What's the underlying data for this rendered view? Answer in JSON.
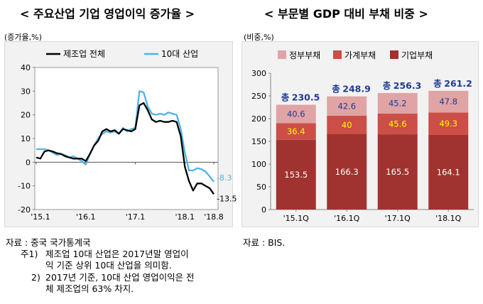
{
  "left": {
    "title": "< 주요산업 기업 영업이익 증가율 >",
    "unit": "(증가율,%)",
    "notes": {
      "source": "자료 : 중국 국가통계국",
      "note1_prefix": "주1)",
      "note1_line1": "제조업 10대 산업은 2017년말 영업이",
      "note1_line2": "익 기준 상위 10대 산업을 의미함.",
      "note2_prefix": "2)",
      "note2_line1": "2017년 기준, 10대 산업 영업이익은 전",
      "note2_line2": "체 제조업의 63% 차지."
    }
  },
  "right": {
    "title": "< 부문별 GDP 대비 부채 비중 >",
    "unit": "(비중,%)",
    "notes": {
      "source": "자료 : BIS."
    }
  },
  "chart_data": [
    {
      "type": "line",
      "title": "< 주요산업 기업 영업이익 증가율 >",
      "ylabel": "(증가율,%)",
      "ylim": [
        -20,
        40
      ],
      "yticks": [
        -20,
        -10,
        0,
        10,
        20,
        30,
        40
      ],
      "xticks": [
        "'15.1",
        "'16.1",
        "'17.1",
        "'18.1",
        "'18.8"
      ],
      "legend_position": "top-left",
      "colors": {
        "manufacturing": "#000000",
        "top10": "#4db3e6"
      },
      "series": [
        {
          "name": "제조업 전체",
          "end_label": "-13.5",
          "values": [
            [
              "'15.1",
              2.0
            ],
            [
              "'15.2",
              1.5
            ],
            [
              "'15.3",
              4.5
            ],
            [
              "'15.4",
              5.0
            ],
            [
              "'15.5",
              4.5
            ],
            [
              "'15.6",
              3.8
            ],
            [
              "'15.7",
              3.5
            ],
            [
              "'15.8",
              2.5
            ],
            [
              "'15.9",
              2.0
            ],
            [
              "'15.10",
              1.5
            ],
            [
              "'15.11",
              1.5
            ],
            [
              "'15.12",
              1.5
            ],
            [
              "'16.1",
              0.5
            ],
            [
              "'16.2",
              3.5
            ],
            [
              "'16.3",
              7.0
            ],
            [
              "'16.4",
              9.0
            ],
            [
              "'16.5",
              13.0
            ],
            [
              "'16.6",
              14.0
            ],
            [
              "'16.7",
              13.0
            ],
            [
              "'16.8",
              13.5
            ],
            [
              "'16.9",
              12.0
            ],
            [
              "'16.10",
              14.0
            ],
            [
              "'16.11",
              13.5
            ],
            [
              "'16.12",
              13.0
            ],
            [
              "'17.1",
              14.0
            ],
            [
              "'17.2",
              24.0
            ],
            [
              "'17.3",
              25.0
            ],
            [
              "'17.4",
              22.0
            ],
            [
              "'17.5",
              18.0
            ],
            [
              "'17.6",
              17.0
            ],
            [
              "'17.7",
              17.5
            ],
            [
              "'17.8",
              17.0
            ],
            [
              "'17.9",
              17.0
            ],
            [
              "'17.10",
              17.5
            ],
            [
              "'17.11",
              17.0
            ],
            [
              "'17.12",
              11.0
            ],
            [
              "'18.1",
              -2.0
            ],
            [
              "'18.2",
              -8.0
            ],
            [
              "'18.3",
              -12.0
            ],
            [
              "'18.4",
              -9.0
            ],
            [
              "'18.5",
              -9.0
            ],
            [
              "'18.6",
              -10.0
            ],
            [
              "'18.7",
              -11.0
            ],
            [
              "'18.8",
              -13.5
            ]
          ]
        },
        {
          "name": "10대 산업",
          "end_label": "-8.3",
          "values": [
            [
              "'15.1",
              5.5
            ],
            [
              "'15.2",
              5.5
            ],
            [
              "'15.3",
              5.5
            ],
            [
              "'15.4",
              5.0
            ],
            [
              "'15.5",
              4.0
            ],
            [
              "'15.6",
              3.0
            ],
            [
              "'15.7",
              3.5
            ],
            [
              "'15.8",
              3.0
            ],
            [
              "'15.9",
              2.0
            ],
            [
              "'15.10",
              2.5
            ],
            [
              "'15.11",
              1.5
            ],
            [
              "'15.12",
              0.5
            ],
            [
              "'16.1",
              -1.0
            ],
            [
              "'16.2",
              3.5
            ],
            [
              "'16.3",
              7.0
            ],
            [
              "'16.4",
              10.0
            ],
            [
              "'16.5",
              12.0
            ],
            [
              "'16.6",
              13.0
            ],
            [
              "'16.7",
              12.5
            ],
            [
              "'16.8",
              13.0
            ],
            [
              "'16.9",
              12.0
            ],
            [
              "'16.10",
              14.5
            ],
            [
              "'16.11",
              13.0
            ],
            [
              "'16.12",
              14.0
            ],
            [
              "'17.1",
              14.5
            ],
            [
              "'17.2",
              30.0
            ],
            [
              "'17.3",
              29.5
            ],
            [
              "'17.4",
              23.5
            ],
            [
              "'17.5",
              20.5
            ],
            [
              "'17.6",
              20.0
            ],
            [
              "'17.7",
              20.5
            ],
            [
              "'17.8",
              20.0
            ],
            [
              "'17.9",
              21.0
            ],
            [
              "'17.10",
              20.5
            ],
            [
              "'17.11",
              20.0
            ],
            [
              "'17.12",
              14.0
            ],
            [
              "'18.1",
              4.0
            ],
            [
              "'18.2",
              -3.5
            ],
            [
              "'18.3",
              -3.5
            ],
            [
              "'18.4",
              -2.5
            ],
            [
              "'18.5",
              -3.0
            ],
            [
              "'18.6",
              -4.0
            ],
            [
              "'18.7",
              -6.0
            ],
            [
              "'18.8",
              -8.3
            ]
          ]
        }
      ]
    },
    {
      "type": "bar",
      "stacked": true,
      "title": "< 부문별 GDP 대비 부채 비중 >",
      "ylabel": "(비중,%)",
      "ylim": [
        0,
        300
      ],
      "yticks": [
        0,
        50,
        100,
        150,
        200,
        250,
        300
      ],
      "categories": [
        "'15.1Q",
        "'16.1Q",
        "'17.1Q",
        "'18.1Q"
      ],
      "legend_position": "top-left",
      "total_prefix": "총",
      "totals": [
        230.5,
        248.9,
        256.3,
        261.2
      ],
      "series": [
        {
          "name": "기업부채",
          "color": "#a0332f",
          "label_color": "#ffffff",
          "values": [
            153.5,
            166.3,
            165.5,
            164.1
          ]
        },
        {
          "name": "가계부채",
          "color": "#cc4e46",
          "label_color": "#ffff00",
          "values": [
            36.4,
            40.0,
            45.6,
            49.3
          ]
        },
        {
          "name": "정부부채",
          "color": "#e0a4a4",
          "label_color": "#1f3a93",
          "values": [
            40.6,
            42.6,
            45.2,
            47.8
          ]
        }
      ]
    }
  ]
}
